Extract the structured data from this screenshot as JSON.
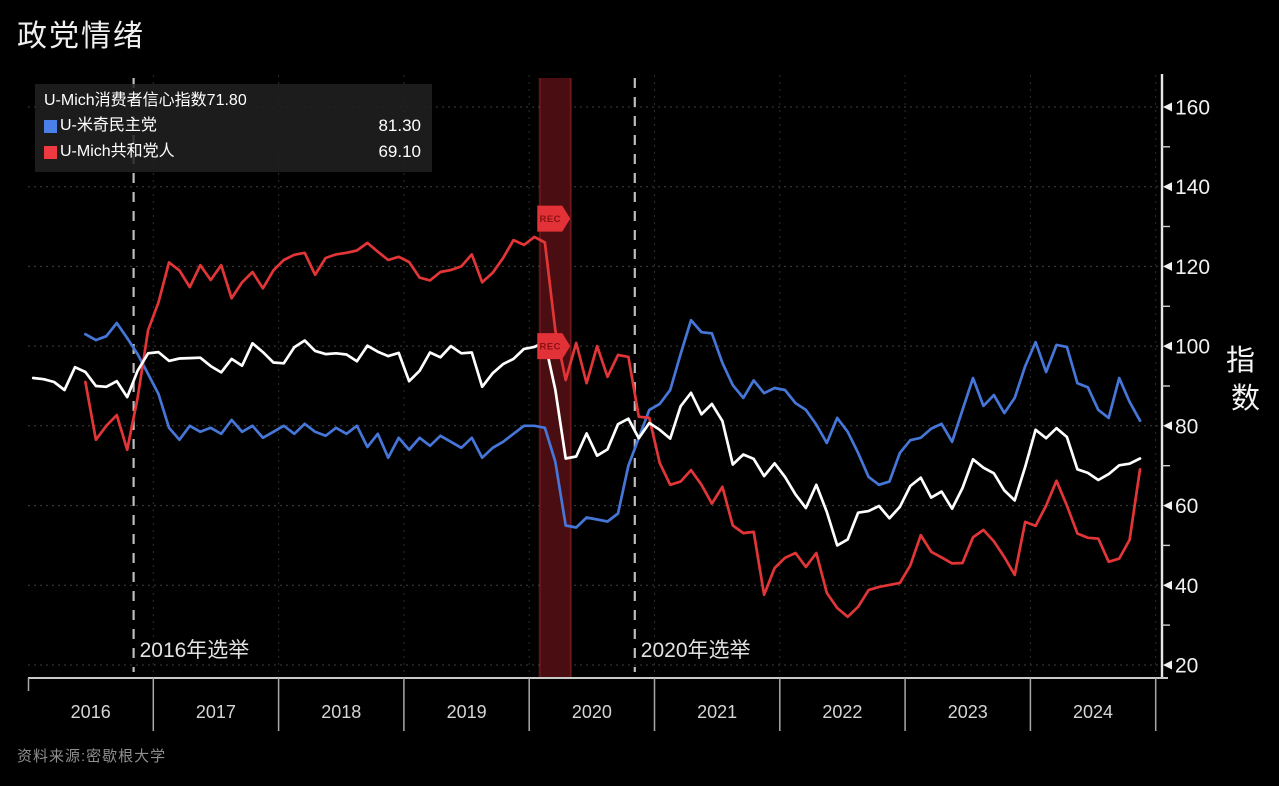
{
  "title": "政党情绪",
  "source": "资料来源:密歇根大学",
  "legend": {
    "items": [
      {
        "label": "U-Mich消费者信心指数",
        "value": "71.80",
        "color": "#ffffff"
      },
      {
        "label": "U-米奇民主党",
        "value": "81.30",
        "color": "#4b7fe8"
      },
      {
        "label": "U-Mich共和党人",
        "value": "69.10",
        "color": "#ee3940"
      }
    ]
  },
  "colors": {
    "background": "#000000",
    "grid": "#414141",
    "year_grid": "#2d2d2d",
    "axis": "#e6e6e6",
    "tick_label": "#f0f0f0",
    "year_label": "#d5d5d5",
    "election_line": "#bdbdbd",
    "election_label": "#e2e2e2",
    "recession_band": "#4a0e12",
    "rec_tag": "#e23137",
    "rec_tag_text": "#8c1114",
    "white_line": "#ffffff",
    "blue_line": "#4576d8",
    "red_line": "#e23537"
  },
  "chart_data": {
    "type": "line",
    "title": "政党情绪",
    "frequency": "monthly",
    "start_year": 2016,
    "start_month": 1,
    "x_axis": {
      "year_labels": [
        "2016",
        "2017",
        "2018",
        "2019",
        "2020",
        "2021",
        "2022",
        "2023",
        "2024"
      ],
      "range_years": [
        2016,
        2025.05
      ]
    },
    "y_axis": {
      "label": "指数",
      "ticks": [
        20,
        40,
        60,
        80,
        100,
        120,
        140,
        160
      ],
      "minor_ticks": [
        30,
        50,
        70,
        90,
        110,
        130,
        150
      ],
      "range": [
        16.5,
        168
      ]
    },
    "grid": true,
    "legend_position": "top-left",
    "events": [
      {
        "label": "2016年选举",
        "t": 2016.843
      },
      {
        "label": "2020年选举",
        "t": 2020.843
      }
    ],
    "recession_band": {
      "from": 2020.083,
      "to": 2020.333,
      "markers": [
        {
          "label": "REC",
          "value": 132
        },
        {
          "label": "REC",
          "value": 100
        }
      ]
    },
    "series": [
      {
        "name": "U-Mich消费者信心指数",
        "color": "#ffffff",
        "last_value": 71.8,
        "values": [
          92.0,
          91.7,
          91.0,
          89.0,
          94.7,
          93.5,
          90.0,
          89.8,
          91.2,
          87.2,
          93.8,
          98.2,
          98.5,
          96.3,
          96.9,
          97.0,
          97.1,
          95.0,
          93.4,
          96.8,
          95.1,
          100.7,
          98.5,
          95.9,
          95.7,
          99.7,
          101.4,
          98.8,
          98.0,
          98.2,
          97.9,
          96.2,
          100.1,
          98.6,
          97.5,
          98.3,
          91.2,
          93.8,
          98.4,
          97.2,
          100.0,
          98.2,
          98.4,
          89.8,
          93.2,
          95.5,
          96.8,
          99.3,
          99.8,
          101.0,
          89.1,
          71.8,
          72.3,
          78.1,
          72.5,
          74.1,
          80.4,
          81.8,
          76.9,
          80.7,
          79.0,
          76.8,
          84.9,
          88.3,
          82.9,
          85.5,
          81.2,
          70.3,
          72.8,
          71.7,
          67.4,
          70.6,
          67.2,
          62.8,
          59.4,
          65.2,
          58.4,
          50.0,
          51.5,
          58.2,
          58.6,
          59.9,
          56.8,
          59.7,
          64.9,
          67.0,
          62.0,
          63.5,
          59.2,
          64.4,
          71.6,
          69.5,
          68.1,
          63.8,
          61.3,
          69.7,
          79.0,
          76.9,
          79.4,
          77.2,
          69.1,
          68.2,
          66.4,
          67.9,
          70.1,
          70.5,
          71.8
        ]
      },
      {
        "name": "U-米奇民主党",
        "color": "#4576d8",
        "last_value": 81.3,
        "values": [
          null,
          null,
          null,
          null,
          null,
          103.0,
          101.5,
          102.5,
          105.8,
          102.0,
          98.0,
          93.0,
          88.0,
          79.5,
          76.5,
          80.0,
          78.5,
          79.5,
          78.0,
          81.5,
          78.5,
          80.0,
          77.0,
          78.5,
          80.0,
          78.0,
          80.5,
          78.5,
          77.5,
          79.5,
          78.0,
          80.0,
          74.7,
          78.0,
          72.0,
          77.0,
          74.0,
          77.0,
          75.0,
          77.5,
          76.0,
          74.5,
          77.0,
          72.0,
          74.5,
          76.0,
          78.0,
          80.0,
          80.0,
          79.5,
          71.0,
          55.0,
          54.5,
          57.0,
          56.5,
          56.0,
          58.0,
          70.0,
          77.0,
          84.0,
          85.5,
          89.0,
          98.0,
          106.5,
          103.5,
          103.2,
          95.8,
          90.2,
          87.0,
          91.4,
          88.2,
          89.5,
          89.0,
          85.7,
          84.0,
          80.3,
          75.7,
          82.0,
          78.5,
          73.2,
          67.2,
          65.2,
          66.0,
          73.2,
          76.4,
          77.0,
          79.3,
          80.5,
          76.0,
          84.0,
          92.0,
          85.0,
          87.7,
          83.2,
          87.0,
          95.0,
          101.0,
          93.5,
          100.3,
          99.8,
          90.7,
          89.7,
          84.0,
          82.0,
          92.0,
          86.0,
          81.3
        ]
      },
      {
        "name": "U-Mich共和党人",
        "color": "#e23537",
        "last_value": 69.1,
        "values": [
          null,
          null,
          null,
          null,
          null,
          91.0,
          76.5,
          80.0,
          82.7,
          74.0,
          87.0,
          104.0,
          111.0,
          121.0,
          119.0,
          114.8,
          120.3,
          116.6,
          120.3,
          112.0,
          116.0,
          118.6,
          114.5,
          119.0,
          121.6,
          122.9,
          123.4,
          117.9,
          122.1,
          123.0,
          123.4,
          124.0,
          125.9,
          123.7,
          121.6,
          122.4,
          121.1,
          117.2,
          116.5,
          118.6,
          119.1,
          120.0,
          123.0,
          116.0,
          118.4,
          122.1,
          126.6,
          125.4,
          127.4,
          126.0,
          104.0,
          91.5,
          100.8,
          90.7,
          100.0,
          92.3,
          97.8,
          97.3,
          82.3,
          82.0,
          70.7,
          65.2,
          66.0,
          68.9,
          65.2,
          60.5,
          64.7,
          55.0,
          53.1,
          53.4,
          37.6,
          44.3,
          46.9,
          48.1,
          44.6,
          48.1,
          38.1,
          34.3,
          32.1,
          34.6,
          38.8,
          39.6,
          40.1,
          40.6,
          45.0,
          52.6,
          48.4,
          47.0,
          45.5,
          45.6,
          52.0,
          53.9,
          51.0,
          47.1,
          42.6,
          55.9,
          54.9,
          60.0,
          66.2,
          60.0,
          53.0,
          51.9,
          51.7,
          45.9,
          46.7,
          51.4,
          69.1
        ]
      }
    ]
  }
}
